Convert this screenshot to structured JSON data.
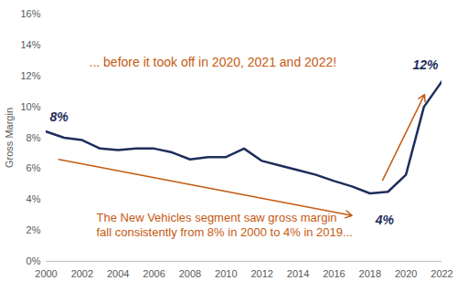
{
  "chart_data": {
    "type": "line",
    "x": [
      2000,
      2001,
      2002,
      2003,
      2004,
      2005,
      2006,
      2007,
      2008,
      2009,
      2010,
      2011,
      2012,
      2013,
      2014,
      2015,
      2016,
      2017,
      2018,
      2019,
      2020,
      2021,
      2022
    ],
    "values": [
      8.4,
      8.0,
      7.85,
      7.3,
      7.2,
      7.3,
      7.3,
      7.05,
      6.6,
      6.75,
      6.75,
      7.3,
      6.5,
      6.2,
      5.9,
      5.6,
      5.2,
      4.85,
      4.4,
      4.5,
      5.6,
      10.0,
      11.65
    ],
    "color": "#1f2d5c",
    "xlim": [
      2000,
      2022
    ],
    "xticks": [
      2000,
      2002,
      2004,
      2006,
      2008,
      2010,
      2012,
      2014,
      2016,
      2018,
      2020,
      2022
    ],
    "ylim": [
      0,
      16
    ],
    "yticks": [
      {
        "value": 0,
        "label": "0%"
      },
      {
        "value": 2,
        "label": "2%"
      },
      {
        "value": 4,
        "label": "4%"
      },
      {
        "value": 6,
        "label": "6%"
      },
      {
        "value": 8,
        "label": "8%"
      },
      {
        "value": 10,
        "label": "10%"
      },
      {
        "value": 12,
        "label": "12%"
      },
      {
        "value": 14,
        "label": "14%"
      },
      {
        "value": 16,
        "label": "16%"
      }
    ],
    "y_label": "Gross Margin",
    "grid": false,
    "point_labels": [
      {
        "x": 2000,
        "text": "8%"
      },
      {
        "x": 2018,
        "text": "4%"
      },
      {
        "x": 2022,
        "text": "12%"
      }
    ],
    "notes": [
      "... before it took off in 2020, 2021 and 2022!",
      "The New Vehicles segment saw gross margin\nfall consistently from 8% in 2000 to 4% in 2019..."
    ]
  }
}
